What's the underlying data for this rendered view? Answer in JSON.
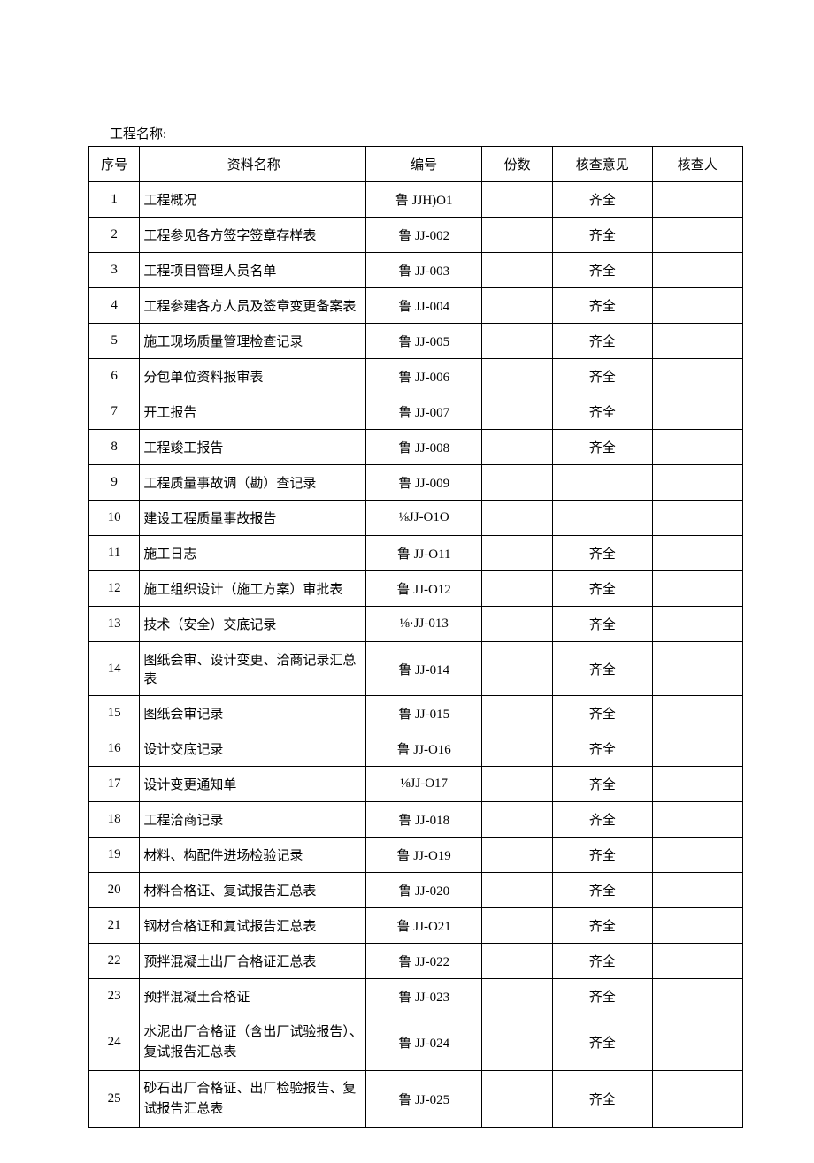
{
  "title_label": "工程名称:",
  "headers": {
    "seq": "序号",
    "name": "资料名称",
    "code": "编号",
    "copies": "份数",
    "opinion": "核查意见",
    "reviewer": "核查人"
  },
  "rows": [
    {
      "seq": "1",
      "name": "工程概况",
      "code": "鲁 JJH)O1",
      "copies": "",
      "opinion": "齐全",
      "reviewer": ""
    },
    {
      "seq": "2",
      "name": "工程参见各方签字签章存样表",
      "code": "鲁 JJ-002",
      "copies": "",
      "opinion": "齐全",
      "reviewer": ""
    },
    {
      "seq": "3",
      "name": "工程项目管理人员名单",
      "code": "鲁 JJ-003",
      "copies": "",
      "opinion": "齐全",
      "reviewer": ""
    },
    {
      "seq": "4",
      "name": "工程参建各方人员及签章变更备案表",
      "code": "鲁 JJ-004",
      "copies": "",
      "opinion": "齐全",
      "reviewer": ""
    },
    {
      "seq": "5",
      "name": "施工现场质量管理检查记录",
      "code": "鲁 JJ-005",
      "copies": "",
      "opinion": "齐全",
      "reviewer": ""
    },
    {
      "seq": "6",
      "name": "分包单位资料报审表",
      "code": "鲁 JJ-006",
      "copies": "",
      "opinion": "齐全",
      "reviewer": ""
    },
    {
      "seq": "7",
      "name": "开工报告",
      "code": "鲁 JJ-007",
      "copies": "",
      "opinion": "齐全",
      "reviewer": ""
    },
    {
      "seq": "8",
      "name": "工程竣工报告",
      "code": "鲁 JJ-008",
      "copies": "",
      "opinion": "齐全",
      "reviewer": ""
    },
    {
      "seq": "9",
      "name": "工程质量事故调（勘）查记录",
      "code": "鲁 JJ-009",
      "copies": "",
      "opinion": "",
      "reviewer": ""
    },
    {
      "seq": "10",
      "name": "建设工程质量事故报告",
      "code": "⅛JJ-O1O",
      "copies": "",
      "opinion": "",
      "reviewer": ""
    },
    {
      "seq": "11",
      "name": "施工日志",
      "code": "鲁 JJ-O11",
      "copies": "",
      "opinion": "齐全",
      "reviewer": ""
    },
    {
      "seq": "12",
      "name": "施工组织设计（施工方案）审批表",
      "code": "鲁 JJ-O12",
      "copies": "",
      "opinion": "齐全",
      "reviewer": ""
    },
    {
      "seq": "13",
      "name": "技术（安全）交底记录",
      "code": "⅛·JJ-013",
      "copies": "",
      "opinion": "齐全",
      "reviewer": ""
    },
    {
      "seq": "14",
      "name": "图纸会审、设计变更、洽商记录汇总表",
      "code": "鲁 JJ-014",
      "copies": "",
      "opinion": "齐全",
      "reviewer": ""
    },
    {
      "seq": "15",
      "name": "图纸会审记录",
      "code": "鲁 JJ-015",
      "copies": "",
      "opinion": "齐全",
      "reviewer": ""
    },
    {
      "seq": "16",
      "name": "设计交底记录",
      "code": "鲁 JJ-O16",
      "copies": "",
      "opinion": "齐全",
      "reviewer": ""
    },
    {
      "seq": "17",
      "name": "设计变更通知单",
      "code": "⅛JJ-O17",
      "copies": "",
      "opinion": "齐全",
      "reviewer": ""
    },
    {
      "seq": "18",
      "name": "工程洽商记录",
      "code": "鲁 JJ-018",
      "copies": "",
      "opinion": "齐全",
      "reviewer": ""
    },
    {
      "seq": "19",
      "name": "材料、构配件进场检验记录",
      "code": "鲁 JJ-O19",
      "copies": "",
      "opinion": "齐全",
      "reviewer": ""
    },
    {
      "seq": "20",
      "name": "材料合格证、复试报告汇总表",
      "code": "鲁 JJ-020",
      "copies": "",
      "opinion": "齐全",
      "reviewer": ""
    },
    {
      "seq": "21",
      "name": "钢材合格证和复试报告汇总表",
      "code": "鲁 JJ-O21",
      "copies": "",
      "opinion": "齐全",
      "reviewer": ""
    },
    {
      "seq": "22",
      "name": "预拌混凝土出厂合格证汇总表",
      "code": "鲁 JJ-022",
      "copies": "",
      "opinion": "齐全",
      "reviewer": ""
    },
    {
      "seq": "23",
      "name": "预拌混凝土合格证",
      "code": "鲁 JJ-023",
      "copies": "",
      "opinion": "齐全",
      "reviewer": ""
    },
    {
      "seq": "24",
      "name": "水泥出厂合格证（含出厂试验报告）、复试报告汇总表",
      "code": "鲁 JJ-024",
      "copies": "",
      "opinion": "齐全",
      "reviewer": ""
    },
    {
      "seq": "25",
      "name": "砂石出厂合格证、出厂检验报告、复试报告汇总表",
      "code": "鲁 JJ-025",
      "copies": "",
      "opinion": "齐全",
      "reviewer": ""
    }
  ]
}
